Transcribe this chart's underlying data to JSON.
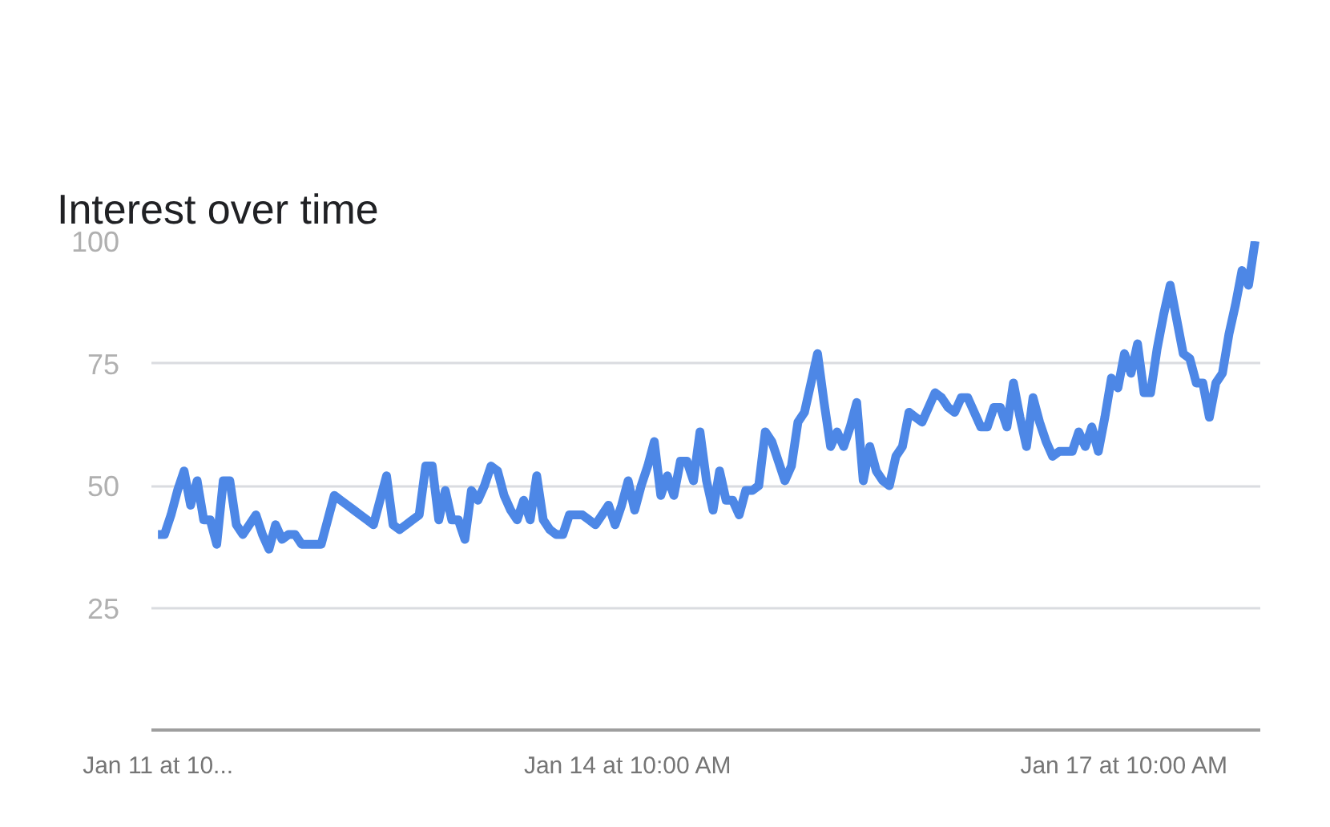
{
  "chart_data": {
    "type": "line",
    "title": "Interest over time",
    "categories": [
      "Jan 11 at 10...",
      null,
      null,
      null,
      null,
      null,
      null,
      null,
      null,
      null,
      null,
      null,
      null,
      null,
      null,
      null,
      null,
      null,
      null,
      null,
      null,
      null,
      null,
      null,
      null,
      null,
      null,
      null,
      null,
      null,
      null,
      null,
      null,
      null,
      null,
      null,
      null,
      null,
      null,
      null,
      null,
      null,
      null,
      null,
      null,
      null,
      null,
      null,
      null,
      null,
      null,
      null,
      null,
      null,
      null,
      null,
      null,
      null,
      null,
      null,
      null,
      null,
      null,
      null,
      null,
      null,
      null,
      null,
      null,
      null,
      null,
      null,
      "Jan 14 at 10:00 AM",
      null,
      null,
      null,
      null,
      null,
      null,
      null,
      null,
      null,
      null,
      null,
      null,
      null,
      null,
      null,
      null,
      null,
      null,
      null,
      null,
      null,
      null,
      null,
      null,
      null,
      null,
      null,
      null,
      null,
      null,
      null,
      null,
      null,
      null,
      null,
      null,
      null,
      null,
      null,
      null,
      null,
      null,
      null,
      null,
      null,
      null,
      null,
      null,
      null,
      null,
      null,
      null,
      null,
      null,
      null,
      null,
      null,
      null,
      null,
      null,
      null,
      null,
      null,
      null,
      null,
      null,
      null,
      null,
      null,
      null,
      null,
      null,
      null,
      null,
      null,
      "Jan 17 at 10:00 AM",
      null,
      null,
      null,
      null,
      null,
      null,
      null,
      null,
      null,
      null,
      null,
      null,
      null,
      null,
      null,
      null,
      null,
      null,
      null,
      null
    ],
    "series": [
      {
        "color": "#4d87e6",
        "values": [
          40,
          40,
          44,
          49,
          53,
          46,
          51,
          43,
          43,
          38,
          51,
          51,
          42,
          40,
          42,
          44,
          40,
          37,
          42,
          39,
          40,
          40,
          38,
          38,
          38,
          38,
          43,
          48,
          47,
          46,
          45,
          44,
          43,
          42,
          47,
          52,
          42,
          41,
          42,
          43,
          44,
          54,
          54,
          43,
          49,
          43,
          43,
          39,
          49,
          47,
          50,
          54,
          53,
          48,
          45,
          43,
          47,
          43,
          52,
          43,
          41,
          40,
          40,
          44,
          44,
          44,
          43,
          42,
          44,
          46,
          42,
          46,
          51,
          45,
          50,
          54,
          59,
          48,
          52,
          48,
          55,
          55,
          51,
          61,
          51,
          45,
          53,
          47,
          47,
          44,
          49,
          49,
          50,
          61,
          59,
          55,
          51,
          54,
          63,
          65,
          71,
          77,
          67,
          58,
          61,
          58,
          62,
          67,
          51,
          58,
          53,
          51,
          50,
          56,
          58,
          65,
          64,
          63,
          66,
          69,
          68,
          66,
          65,
          68,
          68,
          65,
          62,
          62,
          66,
          66,
          62,
          71,
          64,
          58,
          68,
          63,
          59,
          56,
          57,
          57,
          57,
          61,
          58,
          62,
          57,
          64,
          72,
          70,
          77,
          73,
          79,
          69,
          69,
          78,
          85,
          91,
          84,
          77,
          76,
          71,
          71,
          64,
          71,
          73,
          81,
          87,
          94,
          91,
          100
        ]
      }
    ],
    "ylim": [
      0,
      100
    ],
    "yticks": [
      25,
      50,
      75,
      100
    ],
    "grid": "y",
    "marker": "none",
    "line_style": "solid"
  }
}
